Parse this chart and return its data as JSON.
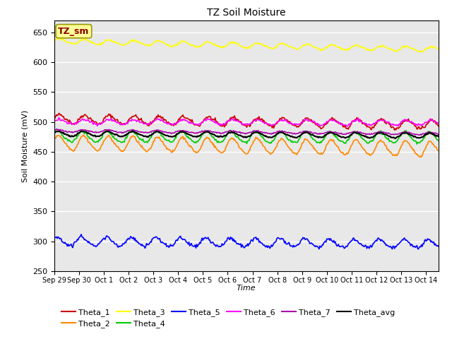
{
  "title": "TZ Soil Moisture",
  "xlabel": "Time",
  "ylabel": "Soil Moisture (mV)",
  "ylim": [
    250,
    670
  ],
  "yticks": [
    250,
    300,
    350,
    400,
    450,
    500,
    550,
    600,
    650
  ],
  "num_days": 15.5,
  "num_points": 500,
  "bg_color": "#e8e8e8",
  "series": {
    "Theta_1": {
      "color": "#cc0000",
      "base": 505,
      "amplitude": 7,
      "trend": -0.65,
      "phase": 0.0,
      "noise": 1.5
    },
    "Theta_2": {
      "color": "#ff8800",
      "base": 465,
      "amplitude": 12,
      "trend": -0.7,
      "phase": 0.3,
      "noise": 1.0
    },
    "Theta_3": {
      "color": "#ffff00",
      "base": 635,
      "amplitude": 4,
      "trend": -0.9,
      "phase": 0.1,
      "noise": 0.8
    },
    "Theta_4": {
      "color": "#00cc00",
      "base": 475,
      "amplitude": 9,
      "trend": -0.1,
      "phase": 0.6,
      "noise": 1.0
    },
    "Theta_5": {
      "color": "#0000ff",
      "base": 300,
      "amplitude": 7,
      "trend": -0.3,
      "phase": 0.8,
      "noise": 1.5
    },
    "Theta_6": {
      "color": "#ff00ff",
      "base": 500,
      "amplitude": 4,
      "trend": -0.1,
      "phase": 0.15,
      "noise": 1.0
    },
    "Theta_7": {
      "color": "#aa00aa",
      "base": 485,
      "amplitude": 2,
      "trend": -0.3,
      "phase": 0.5,
      "noise": 0.5
    },
    "Theta_avg": {
      "color": "#000000",
      "base": 480,
      "amplitude": 4,
      "trend": -0.2,
      "phase": 0.4,
      "noise": 0.5
    }
  },
  "xtick_labels": [
    "Sep 29",
    "Sep 30",
    "Oct 1",
    "Oct 2",
    "Oct 3",
    "Oct 4",
    "Oct 5",
    "Oct 6",
    "Oct 7",
    "Oct 8",
    "Oct 9",
    "Oct 10",
    "Oct 11",
    "Oct 12",
    "Oct 13",
    "Oct 14"
  ],
  "legend_order": [
    "Theta_1",
    "Theta_2",
    "Theta_3",
    "Theta_4",
    "Theta_5",
    "Theta_6",
    "Theta_7",
    "Theta_avg"
  ],
  "legend_box_text": "TZ_sm",
  "legend_box_facecolor": "#ffff99",
  "legend_box_edgecolor": "#999900"
}
